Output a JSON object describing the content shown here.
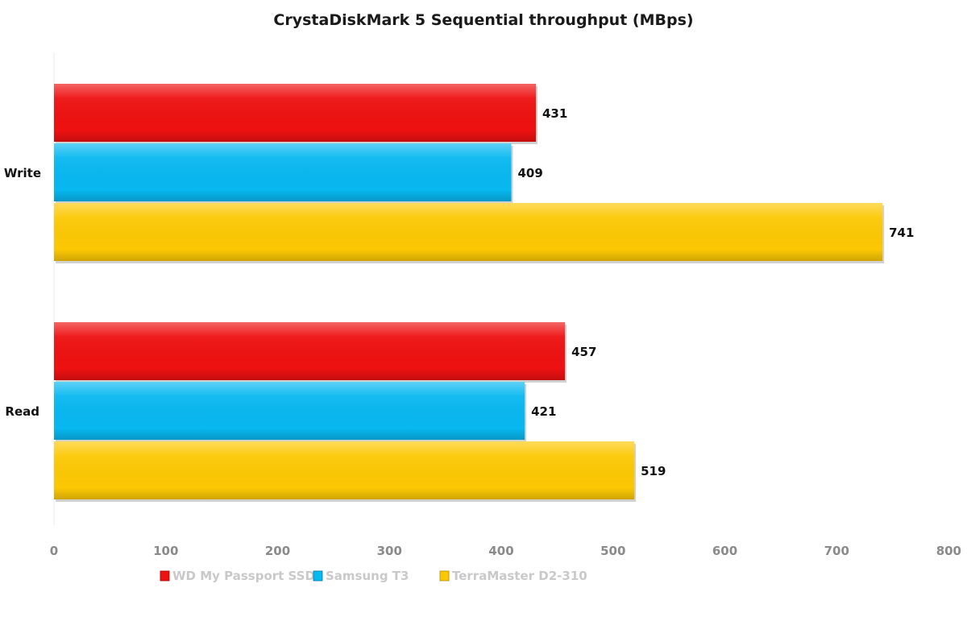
{
  "chart_data": {
    "type": "bar",
    "orientation": "horizontal",
    "title": "CrystaDiskMark 5 Sequential throughput (MBps)",
    "categories": [
      "Write",
      "Read"
    ],
    "series": [
      {
        "name": "WD My Passport SSD",
        "color": "#ee1111",
        "values": [
          431,
          457
        ]
      },
      {
        "name": "Samsung T3",
        "color": "#08b8f0",
        "values": [
          409,
          421
        ]
      },
      {
        "name": "TerraMaster D2-310",
        "color": "#fcc804",
        "values": [
          741,
          519
        ]
      }
    ],
    "xlim": [
      0,
      800
    ],
    "xticks": [
      0,
      100,
      200,
      300,
      400,
      500,
      600,
      700,
      800
    ],
    "grid": false,
    "legend_position": "bottom"
  }
}
